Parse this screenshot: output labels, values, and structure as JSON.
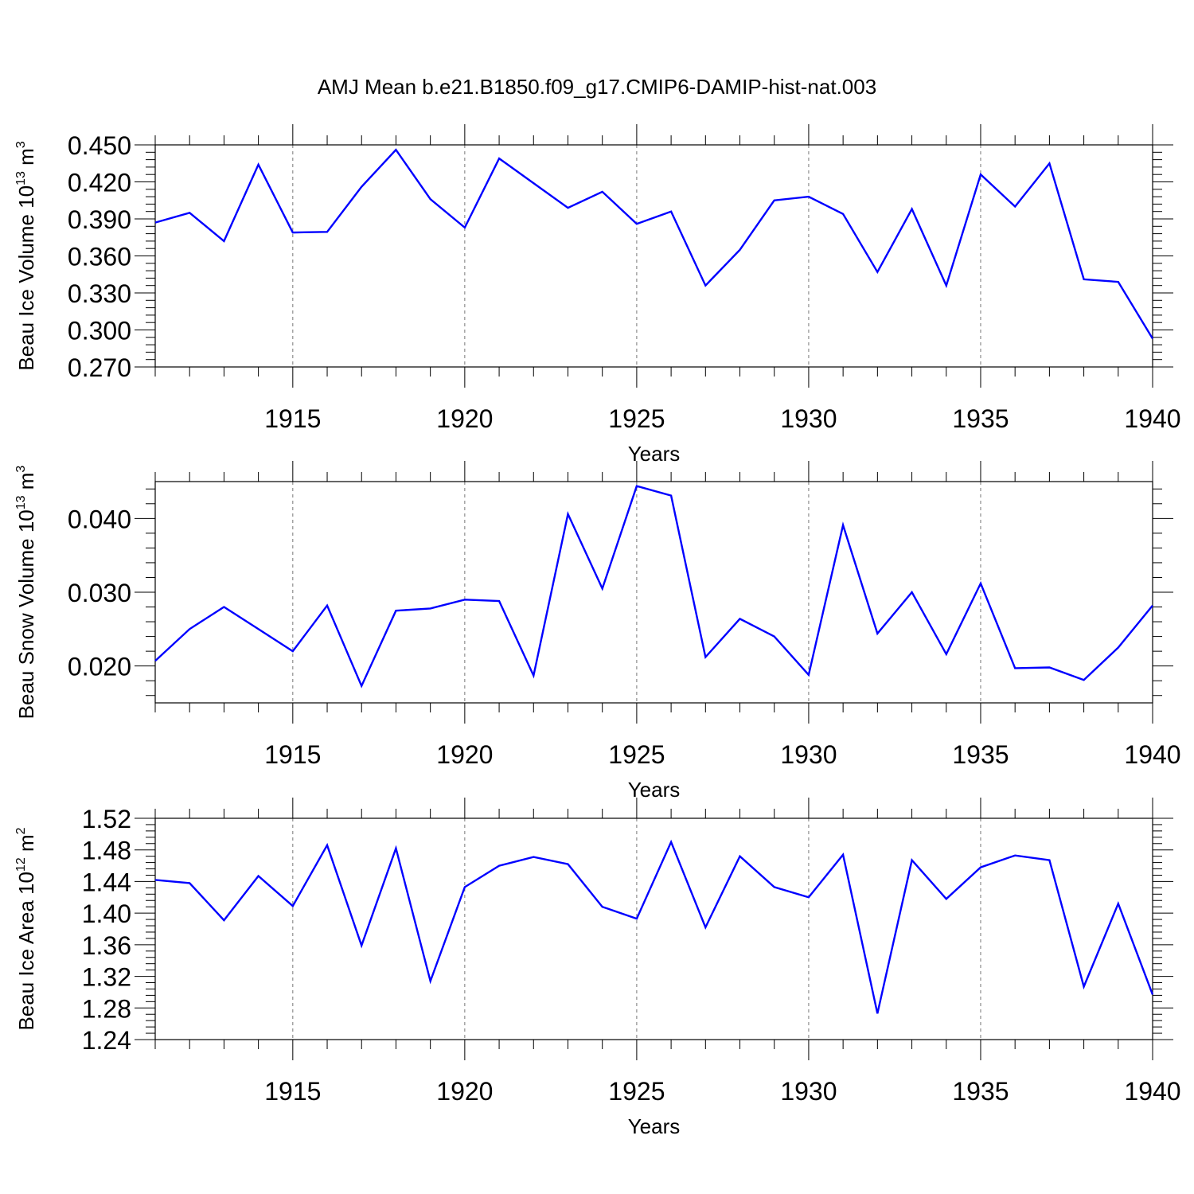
{
  "title": "AMJ Mean b.e21.B1850.f09_g17.CMIP6-DAMIP-hist-nat.003",
  "chart_data": [
    {
      "type": "line",
      "ylabel_main": "Beau Ice Volume 10",
      "ylabel_exp": "13",
      "ylabel_unit": "m",
      "ylabel_unit_exp": "3",
      "xlabel": "Years",
      "xlim": [
        1911,
        1940
      ],
      "ylim": [
        0.27,
        0.45
      ],
      "y_ticks": [
        "0.450",
        "0.420",
        "0.390",
        "0.360",
        "0.330",
        "0.300",
        "0.270"
      ],
      "y_tick_values": [
        0.45,
        0.42,
        0.39,
        0.36,
        0.33,
        0.3,
        0.27
      ],
      "x_ticks": [
        "1915",
        "1920",
        "1925",
        "1930",
        "1935",
        "1940"
      ],
      "x_tick_values": [
        1915,
        1920,
        1925,
        1930,
        1935,
        1940
      ],
      "line_color": "#0000ff",
      "x": [
        1911,
        1912,
        1913,
        1914,
        1915,
        1916,
        1917,
        1918,
        1919,
        1920,
        1921,
        1922,
        1923,
        1924,
        1925,
        1926,
        1927,
        1928,
        1929,
        1930,
        1931,
        1932,
        1933,
        1934,
        1935,
        1936,
        1937,
        1938,
        1939,
        1940
      ],
      "values": [
        0.387,
        0.395,
        0.372,
        0.434,
        0.379,
        0.3795,
        0.416,
        0.446,
        0.406,
        0.383,
        0.439,
        0.419,
        0.399,
        0.412,
        0.386,
        0.396,
        0.336,
        0.365,
        0.405,
        0.408,
        0.394,
        0.347,
        0.398,
        0.336,
        0.426,
        0.4,
        0.435,
        0.341,
        0.339,
        0.293
      ]
    },
    {
      "type": "line",
      "ylabel_main": "Beau Snow Volume 10",
      "ylabel_exp": "13",
      "ylabel_unit": "m",
      "ylabel_unit_exp": "3",
      "xlabel": "Years",
      "xlim": [
        1911,
        1940
      ],
      "ylim": [
        0.015,
        0.045
      ],
      "y_ticks": [
        "0.040",
        "0.030",
        "0.020"
      ],
      "y_tick_values": [
        0.04,
        0.03,
        0.02
      ],
      "x_ticks": [
        "1915",
        "1920",
        "1925",
        "1930",
        "1935",
        "1940"
      ],
      "x_tick_values": [
        1915,
        1920,
        1925,
        1930,
        1935,
        1940
      ],
      "line_color": "#0000ff",
      "x": [
        1911,
        1912,
        1913,
        1914,
        1915,
        1916,
        1917,
        1918,
        1919,
        1920,
        1921,
        1922,
        1923,
        1924,
        1925,
        1926,
        1927,
        1928,
        1929,
        1930,
        1931,
        1932,
        1933,
        1934,
        1935,
        1936,
        1937,
        1938,
        1939,
        1940
      ],
      "values": [
        0.0207,
        0.025,
        0.028,
        0.025,
        0.022,
        0.0282,
        0.0173,
        0.0275,
        0.0278,
        0.029,
        0.0288,
        0.0187,
        0.0406,
        0.0305,
        0.0444,
        0.0431,
        0.0212,
        0.0264,
        0.024,
        0.0188,
        0.0391,
        0.0244,
        0.03,
        0.0216,
        0.0312,
        0.0197,
        0.0198,
        0.0181,
        0.0225,
        0.0282
      ]
    },
    {
      "type": "line",
      "ylabel_main": "Beau Ice Area 10",
      "ylabel_exp": "12",
      "ylabel_unit": "m",
      "ylabel_unit_exp": "2",
      "xlabel": "Years",
      "xlim": [
        1911,
        1940
      ],
      "ylim": [
        1.24,
        1.52
      ],
      "y_ticks": [
        "1.52",
        "1.48",
        "1.44",
        "1.40",
        "1.36",
        "1.32",
        "1.28",
        "1.24"
      ],
      "y_tick_values": [
        1.52,
        1.48,
        1.44,
        1.4,
        1.36,
        1.32,
        1.28,
        1.24
      ],
      "x_ticks": [
        "1915",
        "1920",
        "1925",
        "1930",
        "1935",
        "1940"
      ],
      "x_tick_values": [
        1915,
        1920,
        1925,
        1930,
        1935,
        1940
      ],
      "line_color": "#0000ff",
      "x": [
        1911,
        1912,
        1913,
        1914,
        1915,
        1916,
        1917,
        1918,
        1919,
        1920,
        1921,
        1922,
        1923,
        1924,
        1925,
        1926,
        1927,
        1928,
        1929,
        1930,
        1931,
        1932,
        1933,
        1934,
        1935,
        1936,
        1937,
        1938,
        1939,
        1940
      ],
      "values": [
        1.442,
        1.438,
        1.391,
        1.447,
        1.409,
        1.486,
        1.359,
        1.482,
        1.314,
        1.433,
        1.46,
        1.471,
        1.462,
        1.408,
        1.393,
        1.49,
        1.382,
        1.472,
        1.433,
        1.42,
        1.474,
        1.273,
        1.467,
        1.418,
        1.458,
        1.473,
        1.467,
        1.307,
        1.412,
        1.297
      ]
    }
  ]
}
